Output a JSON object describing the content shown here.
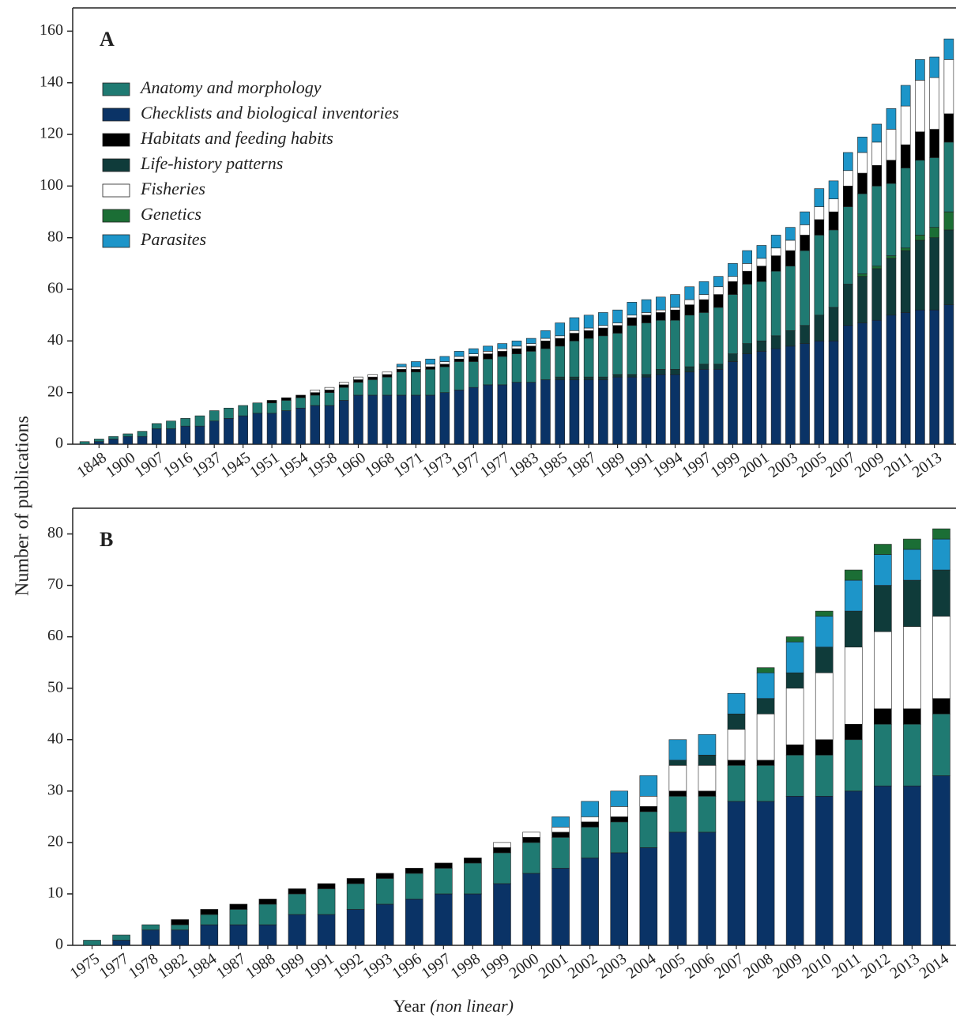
{
  "y_label": "Number of publications",
  "x_label": "Year",
  "x_label_note": "(non linear)",
  "chart_data": [
    {
      "type": "stacked_bar",
      "title": "A",
      "categories": [
        null,
        "1848",
        null,
        "1900",
        null,
        "1907",
        null,
        "1916",
        null,
        "1937",
        null,
        "1945",
        null,
        "1951",
        null,
        "1954",
        null,
        "1958",
        null,
        "1960",
        null,
        "1968",
        null,
        "1971",
        null,
        "1973",
        null,
        "1977",
        null,
        "1977",
        null,
        "1983",
        null,
        "1985",
        null,
        "1987",
        null,
        "1989",
        null,
        "1991",
        null,
        "1994",
        null,
        "1997",
        null,
        "1999",
        null,
        "2001",
        null,
        "2003",
        null,
        "2005",
        null,
        "2007",
        null,
        "2009",
        null,
        "2011",
        null,
        "2013",
        null
      ],
      "series": [
        {
          "name": "Anatomy and morphology",
          "color": "#1f7a72",
          "values": [
            1,
            1,
            1,
            1,
            2,
            2,
            3,
            3,
            4,
            4,
            4,
            4,
            4,
            4,
            4,
            4,
            4,
            5,
            5,
            5,
            6,
            7,
            9,
            9,
            10,
            10,
            11,
            10,
            10,
            11,
            11,
            12,
            12,
            12,
            14,
            15,
            16,
            16,
            19,
            20,
            19,
            19,
            20,
            20,
            22,
            23,
            23,
            23,
            25,
            25,
            29,
            31,
            30,
            30,
            31,
            31,
            28,
            31,
            29,
            27,
            27
          ]
        },
        {
          "name": "Checklists and biological inventories",
          "color": "#0a3366",
          "values": [
            0,
            1,
            2,
            3,
            3,
            6,
            6,
            7,
            7,
            9,
            10,
            11,
            12,
            12,
            13,
            14,
            15,
            15,
            17,
            19,
            19,
            19,
            19,
            19,
            19,
            20,
            21,
            22,
            23,
            23,
            24,
            24,
            25,
            25,
            25,
            25,
            25,
            26,
            26,
            26,
            27,
            27,
            28,
            29,
            29,
            32,
            35,
            36,
            37,
            38,
            39,
            40,
            40,
            46,
            47,
            48,
            50,
            51,
            52,
            52,
            54
          ]
        },
        {
          "name": "Habitats and feeding habits",
          "color": "#000000",
          "values": [
            0,
            0,
            0,
            0,
            0,
            0,
            0,
            0,
            0,
            0,
            0,
            0,
            0,
            1,
            1,
            1,
            1,
            1,
            1,
            1,
            1,
            1,
            1,
            1,
            1,
            1,
            1,
            2,
            2,
            2,
            2,
            2,
            3,
            3,
            3,
            3,
            3,
            3,
            3,
            3,
            3,
            4,
            4,
            5,
            5,
            5,
            5,
            6,
            6,
            6,
            6,
            6,
            7,
            8,
            8,
            8,
            9,
            9,
            11,
            11,
            11
          ]
        },
        {
          "name": "Life-history patterns",
          "color": "#0f3b3a",
          "values": [
            0,
            0,
            0,
            0,
            0,
            0,
            0,
            0,
            0,
            0,
            0,
            0,
            0,
            0,
            0,
            0,
            0,
            0,
            0,
            0,
            0,
            0,
            0,
            0,
            0,
            0,
            0,
            0,
            0,
            0,
            0,
            0,
            0,
            1,
            1,
            1,
            1,
            1,
            1,
            1,
            2,
            2,
            2,
            2,
            2,
            3,
            4,
            4,
            5,
            6,
            7,
            10,
            13,
            16,
            18,
            20,
            22,
            24,
            27,
            28,
            29
          ]
        },
        {
          "name": "Fisheries",
          "color": "#ffffff",
          "values": [
            0,
            0,
            0,
            0,
            0,
            0,
            0,
            0,
            0,
            0,
            0,
            0,
            0,
            0,
            0,
            0,
            1,
            1,
            1,
            1,
            1,
            1,
            1,
            1,
            1,
            1,
            1,
            1,
            1,
            1,
            1,
            1,
            1,
            1,
            1,
            1,
            1,
            1,
            1,
            1,
            1,
            1,
            2,
            2,
            3,
            2,
            3,
            3,
            3,
            4,
            4,
            5,
            5,
            6,
            8,
            9,
            12,
            15,
            20,
            20,
            21
          ]
        },
        {
          "name": "Genetics",
          "color": "#1b6e35",
          "values": [
            0,
            0,
            0,
            0,
            0,
            0,
            0,
            0,
            0,
            0,
            0,
            0,
            0,
            0,
            0,
            0,
            0,
            0,
            0,
            0,
            0,
            0,
            0,
            0,
            0,
            0,
            0,
            0,
            0,
            0,
            0,
            0,
            0,
            0,
            0,
            0,
            0,
            0,
            0,
            0,
            0,
            0,
            0,
            0,
            0,
            0,
            0,
            0,
            0,
            0,
            0,
            0,
            0,
            0,
            1,
            1,
            1,
            1,
            2,
            4,
            7
          ]
        },
        {
          "name": "Parasites",
          "color": "#1d95c9",
          "values": [
            0,
            0,
            0,
            0,
            0,
            0,
            0,
            0,
            0,
            0,
            0,
            0,
            0,
            0,
            0,
            0,
            0,
            0,
            0,
            0,
            0,
            0,
            1,
            2,
            2,
            2,
            2,
            2,
            2,
            2,
            2,
            2,
            3,
            5,
            5,
            5,
            5,
            5,
            5,
            5,
            5,
            5,
            5,
            5,
            4,
            5,
            5,
            5,
            5,
            5,
            5,
            7,
            7,
            7,
            6,
            7,
            8,
            8,
            8,
            8,
            8
          ]
        }
      ],
      "ylim": [
        0,
        169
      ],
      "yticks": [
        0,
        20,
        40,
        60,
        80,
        100,
        120,
        140,
        160
      ],
      "legend": "upper left"
    },
    {
      "type": "stacked_bar",
      "title": "B",
      "categories": [
        "1975",
        "1977",
        "1978",
        "1982",
        "1984",
        "1987",
        "1988",
        "1989",
        "1991",
        "1992",
        "1993",
        "1996",
        "1997",
        "1998",
        "1999",
        "2000",
        "2001",
        "2002",
        "2003",
        "2004",
        "2005",
        "2006",
        "2007",
        "2008",
        "2009",
        "2010",
        "2011",
        "2012",
        "2013",
        "2014"
      ],
      "series": [
        {
          "color": "#1f7a72",
          "values": [
            1,
            1,
            1,
            1,
            2,
            3,
            4,
            4,
            5,
            5,
            5,
            5,
            5,
            6,
            6,
            6,
            6,
            6,
            6,
            7,
            7,
            7,
            7,
            7,
            8,
            8,
            10,
            12,
            12,
            12
          ]
        },
        {
          "color": "#0a3366",
          "values": [
            0,
            1,
            3,
            3,
            4,
            4,
            4,
            6,
            6,
            7,
            8,
            9,
            10,
            10,
            12,
            14,
            15,
            17,
            18,
            19,
            22,
            22,
            28,
            28,
            29,
            29,
            30,
            31,
            31,
            33
          ]
        },
        {
          "color": "#000000",
          "values": [
            0,
            0,
            0,
            1,
            1,
            1,
            1,
            1,
            1,
            1,
            1,
            1,
            1,
            1,
            1,
            1,
            1,
            1,
            1,
            1,
            1,
            1,
            1,
            1,
            2,
            3,
            3,
            3,
            3,
            3
          ]
        },
        {
          "color": "#0f3b3a",
          "values": [
            0,
            0,
            0,
            0,
            0,
            0,
            0,
            0,
            0,
            0,
            0,
            0,
            0,
            0,
            0,
            0,
            0,
            0,
            0,
            0,
            1,
            2,
            3,
            3,
            3,
            5,
            7,
            9,
            9,
            9
          ]
        },
        {
          "color": "#ffffff",
          "values": [
            0,
            0,
            0,
            0,
            0,
            0,
            0,
            0,
            0,
            0,
            0,
            0,
            0,
            0,
            1,
            1,
            1,
            1,
            2,
            2,
            5,
            5,
            6,
            9,
            11,
            13,
            15,
            15,
            16,
            16
          ]
        },
        {
          "color": "#1b6e35",
          "values": [
            0,
            0,
            0,
            0,
            0,
            0,
            0,
            0,
            0,
            0,
            0,
            0,
            0,
            0,
            0,
            0,
            0,
            0,
            0,
            0,
            0,
            0,
            0,
            1,
            1,
            1,
            2,
            2,
            2,
            2
          ]
        },
        {
          "color": "#1d95c9",
          "values": [
            0,
            0,
            0,
            0,
            0,
            0,
            0,
            0,
            0,
            0,
            0,
            0,
            0,
            0,
            0,
            0,
            2,
            3,
            3,
            4,
            4,
            4,
            4,
            5,
            6,
            6,
            6,
            6,
            6,
            6
          ]
        }
      ],
      "ylim": [
        0,
        85
      ],
      "yticks": [
        0,
        10,
        20,
        30,
        40,
        50,
        60,
        70,
        80
      ]
    }
  ]
}
